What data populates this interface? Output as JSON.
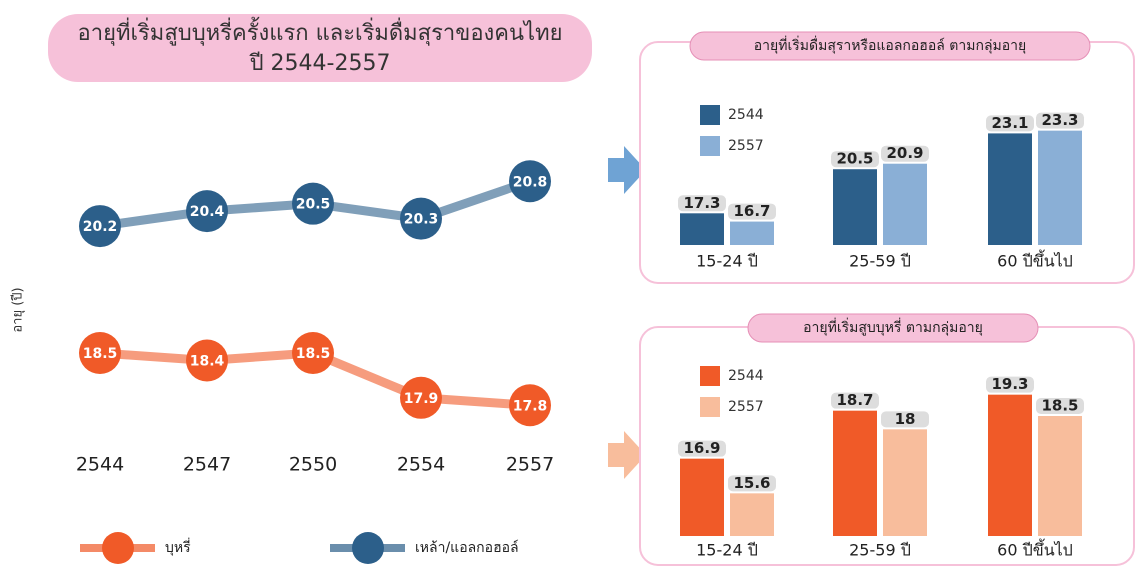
{
  "title": "อายุที่เริ่มสูบบุหรี่ครั้งแรก และเริ่มดื่มสุราของคนไทย",
  "subtitle": "ปี 2544-2557",
  "chart_data": [
    {
      "type": "line",
      "y_label": "อายุ (ปี)",
      "categories": [
        "2544",
        "2547",
        "2550",
        "2554",
        "2557"
      ],
      "series": [
        {
          "name": "บุหรี่",
          "color": "#f05a28",
          "values": [
            18.5,
            18.4,
            18.5,
            17.9,
            17.8
          ]
        },
        {
          "name": "เหล้า/แอลกอฮอล์",
          "color": "#2c5f8a",
          "values": [
            20.2,
            20.4,
            20.5,
            20.3,
            20.8
          ]
        }
      ],
      "ylim": [
        17,
        21.5
      ]
    },
    {
      "type": "bar",
      "title": "อายุที่เริ่มดื่มสุราหรือแอลกอฮอล์ ตามกลุ่มอายุ",
      "categories": [
        "15-24 ปี",
        "25-59 ปี",
        "60 ปีขึ้นไป"
      ],
      "series": [
        {
          "name": "2544",
          "color": "#2c5f8a",
          "values": [
            17.3,
            20.5,
            23.1
          ]
        },
        {
          "name": "2557",
          "color": "#8aafd6",
          "values": [
            16.7,
            20.9,
            23.3
          ]
        }
      ],
      "ylim": [
        15,
        24
      ]
    },
    {
      "type": "bar",
      "title": "อายุที่เริ่มสูบบุหรี่ ตามกลุ่มอายุ",
      "categories": [
        "15-24 ปี",
        "25-59 ปี",
        "60 ปีขึ้นไป"
      ],
      "series": [
        {
          "name": "2544",
          "color": "#f05a28",
          "values": [
            16.9,
            18.7,
            19.3
          ]
        },
        {
          "name": "2557",
          "color": "#f8bd9c",
          "values": [
            15.6,
            18.0,
            18.5
          ]
        }
      ],
      "ylim": [
        14,
        20
      ]
    }
  ]
}
